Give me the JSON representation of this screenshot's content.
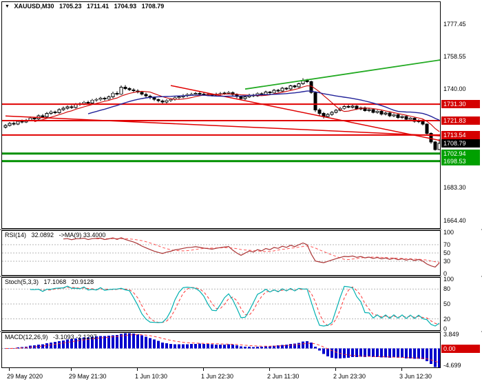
{
  "icons": {
    "expand": "▼"
  },
  "header": {
    "symbol": "XAUUSD,M30",
    "open": "1705.23",
    "high": "1711.41",
    "low": "1704.93",
    "close": "1708.79"
  },
  "chart_data": {
    "type": "candlestick",
    "title": "XAUUSD,M30",
    "ylim": [
      1660,
      1790
    ],
    "ma_fast_period": 8,
    "ma_slow_period": 21,
    "colors": {
      "bull": "#ffffff",
      "bear": "#000000",
      "wick": "#000000",
      "ma_fast": "#cc0000",
      "ma_slow": "#222299",
      "resistance": "#e00000",
      "support": "#009000",
      "trend_green": "#22aa22",
      "badge_red": "#d40000",
      "badge_green": "#00a000",
      "badge_black": "#000000"
    },
    "candles": [
      [
        1718.0,
        1719.8,
        1717.2,
        1719.0
      ],
      [
        1719.0,
        1721.0,
        1718.4,
        1720.2
      ],
      [
        1720.2,
        1721.2,
        1719.0,
        1719.8
      ],
      [
        1719.8,
        1722.2,
        1719.2,
        1721.4
      ],
      [
        1721.4,
        1722.4,
        1720.2,
        1721.0
      ],
      [
        1721.0,
        1722.8,
        1720.4,
        1722.0
      ],
      [
        1722.0,
        1724.2,
        1721.4,
        1723.3
      ],
      [
        1723.3,
        1724.0,
        1722.0,
        1722.8
      ],
      [
        1722.8,
        1725.4,
        1722.2,
        1724.6
      ],
      [
        1724.6,
        1725.6,
        1723.2,
        1724.0
      ],
      [
        1724.0,
        1726.8,
        1723.4,
        1726.0
      ],
      [
        1726.0,
        1727.8,
        1725.2,
        1726.9
      ],
      [
        1726.9,
        1727.6,
        1725.6,
        1726.4
      ],
      [
        1726.4,
        1729.0,
        1725.8,
        1728.2
      ],
      [
        1728.2,
        1729.9,
        1727.4,
        1729.0
      ],
      [
        1729.0,
        1730.6,
        1728.2,
        1729.8
      ],
      [
        1729.8,
        1730.8,
        1728.6,
        1729.4
      ],
      [
        1729.4,
        1732.0,
        1728.8,
        1731.2
      ],
      [
        1731.2,
        1732.4,
        1730.4,
        1731.5
      ],
      [
        1731.5,
        1733.2,
        1730.8,
        1732.4
      ],
      [
        1732.4,
        1733.4,
        1731.0,
        1731.9
      ],
      [
        1731.9,
        1734.4,
        1731.2,
        1733.6
      ],
      [
        1733.6,
        1734.9,
        1732.8,
        1734.0
      ],
      [
        1734.0,
        1735.5,
        1733.2,
        1734.7
      ],
      [
        1734.7,
        1735.6,
        1733.4,
        1734.2
      ],
      [
        1734.2,
        1736.3,
        1733.6,
        1735.5
      ],
      [
        1735.5,
        1738.4,
        1734.8,
        1737.6
      ],
      [
        1737.6,
        1738.6,
        1736.2,
        1737.0
      ],
      [
        1737.0,
        1742.0,
        1736.4,
        1741.0
      ],
      [
        1741.0,
        1742.2,
        1739.4,
        1740.2
      ],
      [
        1740.2,
        1741.0,
        1738.8,
        1739.6
      ],
      [
        1739.6,
        1740.4,
        1738.2,
        1739.0
      ],
      [
        1739.0,
        1739.8,
        1737.4,
        1738.2
      ],
      [
        1738.2,
        1738.8,
        1736.2,
        1737.0
      ],
      [
        1737.0,
        1737.8,
        1735.2,
        1736.0
      ],
      [
        1736.0,
        1736.6,
        1734.2,
        1735.0
      ],
      [
        1735.0,
        1735.8,
        1733.2,
        1734.0
      ],
      [
        1734.0,
        1734.6,
        1732.4,
        1733.2
      ],
      [
        1733.2,
        1734.0,
        1731.6,
        1732.5
      ],
      [
        1732.5,
        1734.2,
        1731.8,
        1733.4
      ],
      [
        1733.4,
        1734.8,
        1732.6,
        1734.0
      ],
      [
        1734.0,
        1735.8,
        1733.4,
        1735.0
      ],
      [
        1735.0,
        1736.3,
        1734.2,
        1735.5
      ],
      [
        1735.5,
        1737.0,
        1734.8,
        1736.2
      ],
      [
        1736.2,
        1737.6,
        1735.4,
        1736.8
      ],
      [
        1736.8,
        1737.9,
        1736.0,
        1737.0
      ],
      [
        1737.0,
        1738.3,
        1736.2,
        1737.5
      ],
      [
        1737.5,
        1738.4,
        1736.4,
        1737.2
      ],
      [
        1737.2,
        1738.0,
        1736.1,
        1736.9
      ],
      [
        1736.9,
        1737.7,
        1735.9,
        1736.7
      ],
      [
        1736.7,
        1737.5,
        1735.7,
        1736.5
      ],
      [
        1736.5,
        1737.8,
        1735.8,
        1737.0
      ],
      [
        1737.0,
        1738.2,
        1736.2,
        1737.4
      ],
      [
        1737.4,
        1738.5,
        1736.6,
        1737.7
      ],
      [
        1737.7,
        1738.9,
        1736.9,
        1738.0
      ],
      [
        1738.0,
        1738.6,
        1736.0,
        1736.8
      ],
      [
        1736.8,
        1737.4,
        1734.8,
        1735.6
      ],
      [
        1735.6,
        1736.2,
        1733.7,
        1734.5
      ],
      [
        1734.5,
        1736.2,
        1733.8,
        1735.5
      ],
      [
        1735.5,
        1737.3,
        1734.9,
        1736.6
      ],
      [
        1736.6,
        1737.2,
        1735.3,
        1736.1
      ],
      [
        1736.1,
        1738.1,
        1735.5,
        1737.4
      ],
      [
        1737.4,
        1738.0,
        1736.1,
        1736.9
      ],
      [
        1736.9,
        1739.0,
        1736.3,
        1738.3
      ],
      [
        1738.3,
        1738.9,
        1737.0,
        1737.8
      ],
      [
        1737.8,
        1740.0,
        1737.2,
        1739.3
      ],
      [
        1739.3,
        1740.0,
        1738.1,
        1738.9
      ],
      [
        1738.9,
        1741.2,
        1738.3,
        1740.5
      ],
      [
        1740.5,
        1741.1,
        1739.2,
        1740.0
      ],
      [
        1740.0,
        1742.5,
        1739.4,
        1741.8
      ],
      [
        1741.8,
        1742.4,
        1740.4,
        1741.2
      ],
      [
        1741.2,
        1743.7,
        1740.6,
        1743.0
      ],
      [
        1743.0,
        1746.2,
        1742.4,
        1745.0
      ],
      [
        1745.0,
        1745.8,
        1743.4,
        1744.2
      ],
      [
        1744.2,
        1744.8,
        1737.2,
        1738.0
      ],
      [
        1738.0,
        1738.6,
        1726.8,
        1728.0
      ],
      [
        1728.0,
        1729.0,
        1724.8,
        1726.0
      ],
      [
        1726.0,
        1726.8,
        1723.1,
        1724.2
      ],
      [
        1724.2,
        1726.2,
        1723.4,
        1725.4
      ],
      [
        1725.4,
        1727.4,
        1724.7,
        1726.6
      ],
      [
        1726.6,
        1728.6,
        1726.0,
        1727.8
      ],
      [
        1727.8,
        1729.7,
        1727.2,
        1728.9
      ],
      [
        1728.9,
        1730.8,
        1728.2,
        1730.0
      ],
      [
        1730.0,
        1731.1,
        1728.9,
        1729.6
      ],
      [
        1729.6,
        1730.9,
        1728.8,
        1730.2
      ],
      [
        1730.2,
        1730.8,
        1727.9,
        1728.6
      ],
      [
        1728.6,
        1730.0,
        1727.8,
        1729.3
      ],
      [
        1729.3,
        1729.9,
        1726.9,
        1727.6
      ],
      [
        1727.6,
        1728.9,
        1726.8,
        1728.2
      ],
      [
        1728.2,
        1728.8,
        1725.9,
        1726.6
      ],
      [
        1726.6,
        1728.0,
        1725.8,
        1727.3
      ],
      [
        1727.3,
        1727.9,
        1724.9,
        1725.6
      ],
      [
        1725.6,
        1726.9,
        1724.8,
        1726.2
      ],
      [
        1726.2,
        1726.8,
        1723.9,
        1724.6
      ],
      [
        1724.6,
        1726.0,
        1723.8,
        1725.3
      ],
      [
        1725.3,
        1725.9,
        1722.9,
        1723.6
      ],
      [
        1723.6,
        1724.9,
        1722.8,
        1724.2
      ],
      [
        1724.2,
        1724.8,
        1721.8,
        1722.5
      ],
      [
        1722.5,
        1723.9,
        1721.7,
        1723.2
      ],
      [
        1723.2,
        1723.8,
        1720.6,
        1721.3
      ],
      [
        1721.3,
        1722.7,
        1720.5,
        1722.0
      ],
      [
        1722.0,
        1722.5,
        1719.0,
        1719.8
      ],
      [
        1719.8,
        1720.2,
        1713.8,
        1714.5
      ],
      [
        1714.5,
        1715.0,
        1708.6,
        1709.5
      ],
      [
        1709.5,
        1710.2,
        1704.5,
        1705.23
      ],
      [
        1705.23,
        1711.41,
        1704.93,
        1708.79
      ]
    ],
    "hlines": [
      {
        "price": 1731.3,
        "color": "#e00000",
        "width": 2,
        "label": "1731.30",
        "label_bg": "#d40000"
      },
      {
        "price": 1721.83,
        "color": "#e00000",
        "width": 2,
        "label": "1721.83",
        "label_bg": "#d40000"
      },
      {
        "price": 1713.54,
        "color": "#e00000",
        "width": 2,
        "label": "1713.54",
        "label_bg": "#d40000"
      },
      {
        "price": 1702.94,
        "color": "#009000",
        "width": 3,
        "label": "1702.94",
        "label_bg": "#00a000"
      },
      {
        "price": 1698.53,
        "color": "#009000",
        "width": 3,
        "label": "1698.53",
        "label_bg": "#00a000"
      }
    ],
    "current_price": {
      "price": 1708.79,
      "label": "1708.79",
      "label_bg": "#000000"
    },
    "trendlines": [
      {
        "from_index": 58,
        "from_price": 1740.0,
        "to_index": 106,
        "to_price": 1757.0,
        "color": "#22aa22",
        "width": 1.8
      },
      {
        "from_index": 0,
        "from_price": 1724.5,
        "to_index": 106,
        "to_price": 1713.0,
        "color": "#e00000",
        "width": 1.5
      },
      {
        "from_index": 40,
        "from_price": 1742.0,
        "to_index": 106,
        "to_price": 1710.0,
        "color": "#e00000",
        "width": 1.5
      }
    ],
    "y_axis_labels": [
      {
        "text": "1777.45",
        "price": 1777.45
      },
      {
        "text": "1758.55",
        "price": 1758.55
      },
      {
        "text": "1740.00",
        "price": 1740.0
      },
      {
        "text": "1683.30",
        "price": 1683.3
      },
      {
        "text": "1664.40",
        "price": 1664.4
      }
    ],
    "x_axis_labels": [
      {
        "text": "29 May 2020",
        "index": 1
      },
      {
        "text": "29 May 21:30",
        "index": 16
      },
      {
        "text": "1 Jun 10:30",
        "index": 32
      },
      {
        "text": "1 Jun 22:30",
        "index": 48
      },
      {
        "text": "2 Jun 11:30",
        "index": 64
      },
      {
        "text": "2 Jun 23:30",
        "index": 80
      },
      {
        "text": "3 Jun 12:30",
        "index": 96
      }
    ],
    "indicators": {
      "rsi": {
        "label": "RSI(14)",
        "value": "32.0892",
        "ma_label": "->MA(9)",
        "ma_value": "33.4000",
        "period": 14,
        "ma_period": 9,
        "levels": [
          100,
          70,
          50,
          30,
          0
        ],
        "level_lines": [
          70,
          50,
          30
        ],
        "color": "#aa3333",
        "ma_color": "#ff5555"
      },
      "stoch": {
        "label": "Stoch(5,3,3)",
        "value_k": "17.1068",
        "value_d": "20.9128",
        "k_period": 5,
        "slowing": 3,
        "d_period": 3,
        "levels": [
          100,
          80,
          50,
          20,
          0
        ],
        "level_lines": [
          80,
          50,
          20
        ],
        "k_color": "#00b0b0",
        "d_color": "#ff3333"
      },
      "macd": {
        "label": "MACD(12,26,9)",
        "value": "-3.1093 -2.1297",
        "fast": 12,
        "slow": 26,
        "signal": 9,
        "ylim": [
          -5.2,
          4.3
        ],
        "axis_labels": [
          {
            "text": "3.849",
            "value": 3.849
          },
          {
            "text": "-4.699",
            "value": -4.699
          }
        ],
        "zero_label": {
          "text": "0.00",
          "value": 0,
          "bg": "#d40000"
        },
        "hist_color": "#0000cc",
        "signal_color": "#ff3333"
      }
    }
  }
}
